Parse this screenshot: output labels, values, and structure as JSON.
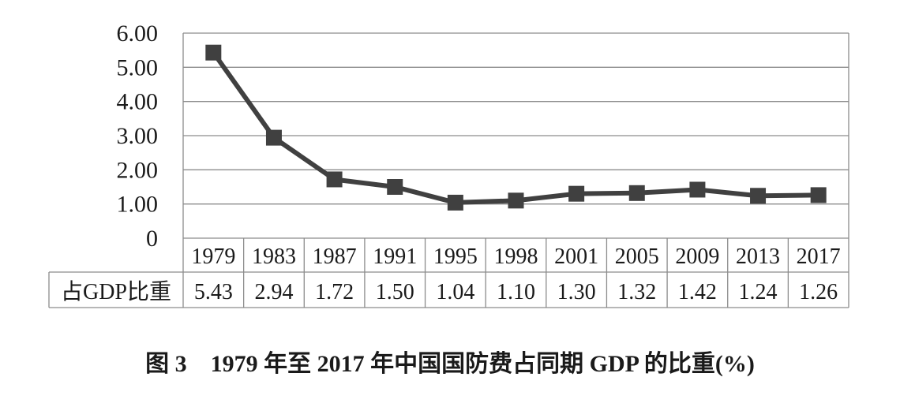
{
  "caption": "图 3　1979 年至 2017 年中国国防费占同期 GDP 的比重(%)",
  "chart_data": {
    "type": "line",
    "title": "",
    "xlabel": "",
    "ylabel": "",
    "categories": [
      "1979",
      "1983",
      "1987",
      "1991",
      "1995",
      "1998",
      "2001",
      "2005",
      "2009",
      "2013",
      "2017"
    ],
    "series": [
      {
        "name": "占GDP比重",
        "values": [
          5.43,
          2.94,
          1.72,
          1.5,
          1.04,
          1.1,
          1.3,
          1.32,
          1.42,
          1.24,
          1.26
        ],
        "value_labels": [
          "5.43",
          "2.94",
          "1.72",
          "1.50",
          "1.04",
          "1.10",
          "1.30",
          "1.32",
          "1.42",
          "1.24",
          "1.26"
        ]
      }
    ],
    "ylim": [
      0,
      6
    ],
    "y_ticks": [
      0,
      1,
      2,
      3,
      4,
      5,
      6
    ],
    "y_tick_labels": [
      "0",
      "1.00",
      "2.00",
      "3.00",
      "4.00",
      "5.00",
      "6.00"
    ],
    "grid": true,
    "legend": "none",
    "data_table": true,
    "line_color": "#404040",
    "marker": "square"
  }
}
